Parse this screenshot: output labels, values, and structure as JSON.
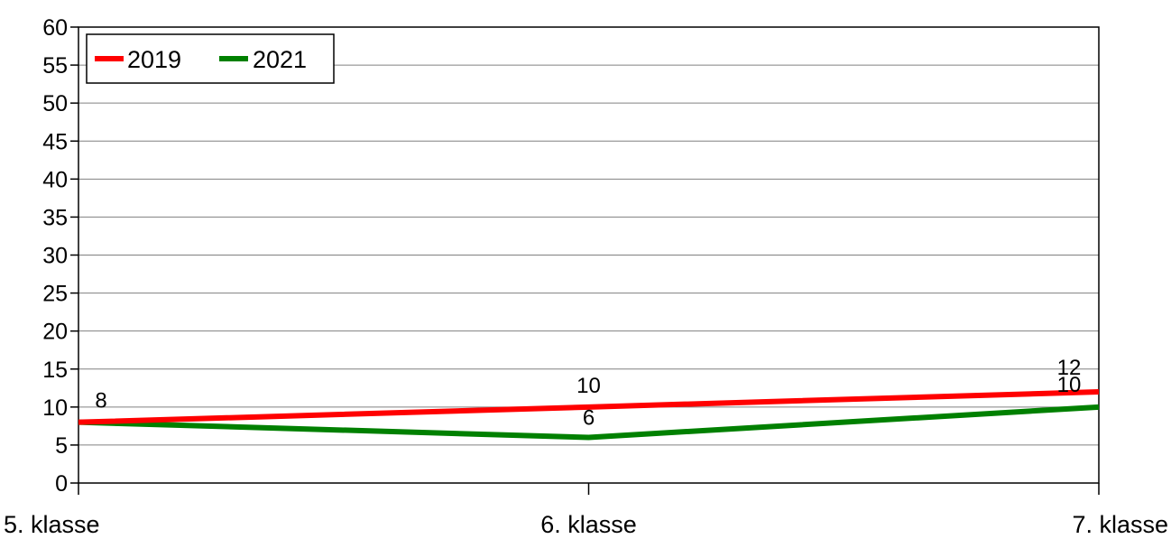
{
  "chart_data": {
    "type": "line",
    "categories": [
      "5. klasse",
      "6. klasse",
      "7. klasse"
    ],
    "series": [
      {
        "name": "2019",
        "values": [
          8,
          10,
          12
        ],
        "color": "#ff0000"
      },
      {
        "name": "2021",
        "values": [
          8,
          6,
          10
        ],
        "color": "#008000"
      }
    ],
    "ylim": [
      0,
      60
    ],
    "yticks": [
      0,
      5,
      10,
      15,
      20,
      25,
      30,
      35,
      40,
      45,
      50,
      55,
      60
    ],
    "grid": true,
    "legend_position": "top-left",
    "data_labels": true
  }
}
